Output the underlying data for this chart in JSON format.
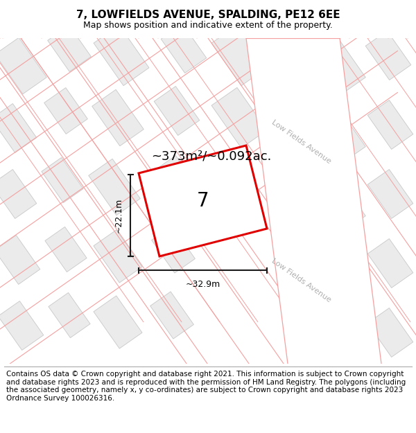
{
  "title": "7, LOWFIELDS AVENUE, SPALDING, PE12 6EE",
  "subtitle": "Map shows position and indicative extent of the property.",
  "area_label": "~373m²/~0.092ac.",
  "plot_number": "7",
  "width_label": "~32.9m",
  "height_label": "~22.1m",
  "footer": "Contains OS data © Crown copyright and database right 2021. This information is subject to Crown copyright and database rights 2023 and is reproduced with the permission of HM Land Registry. The polygons (including the associated geometry, namely x, y co-ordinates) are subject to Crown copyright and database rights 2023 Ordnance Survey 100026316.",
  "bg_color": "#ffffff",
  "building_fill": "#ebebeb",
  "building_edge": "#c8c8c8",
  "plot_outline_color": "#e00000",
  "property_line_color": "#f5a0a0",
  "dim_line_color": "#1a1a1a",
  "street_label_color": "#b0b0b0",
  "street_label": "Low Fields Avenue",
  "title_fontsize": 11,
  "subtitle_fontsize": 9,
  "footer_fontsize": 7.5
}
